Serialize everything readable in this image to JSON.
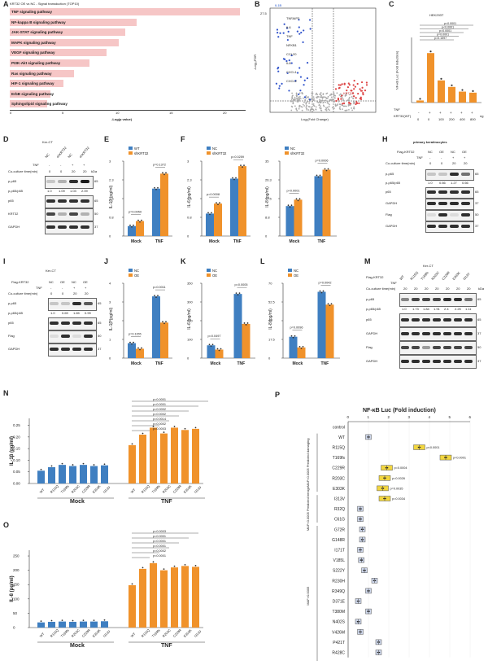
{
  "panel_letters": [
    "A",
    "B",
    "C",
    "D",
    "E",
    "F",
    "G",
    "H",
    "I",
    "J",
    "K",
    "L",
    "M",
    "N",
    "O",
    "P"
  ],
  "panelA": {
    "title": "KRT32 OE vs NC - Signal transduction (TOP10)",
    "xlabel": "-Log(p value)",
    "ticks": [
      "0",
      "5",
      "10",
      "15",
      "20"
    ],
    "pathways": [
      {
        "label": "TNF signaling pathway",
        "value": 21.5
      },
      {
        "label": "NF-kappa B signaling pathway",
        "value": 11.8
      },
      {
        "label": "JAK-STAT signaling pathway",
        "value": 10.8
      },
      {
        "label": "MAPK signaling pathway",
        "value": 10.2
      },
      {
        "label": "VEGF signaling pathway",
        "value": 9.0
      },
      {
        "label": "PI3K-Akt signaling pathway",
        "value": 7.4
      },
      {
        "label": "Ras signaling pathway",
        "value": 6.0
      },
      {
        "label": "HIF-1 signaling pathway",
        "value": 5.0
      },
      {
        "label": "ErbB signaling pathway",
        "value": 3.8
      },
      {
        "label": "Sphingolipid signaling pathway",
        "value": 3.5
      }
    ]
  },
  "panelB": {
    "xlabel": "Log₂(Fold Change)",
    "ylabel": "-Log₁₀FDR",
    "top_label": "IL1B",
    "y_top": "27.5",
    "genes_left": [
      "TNFAIP3",
      "IL6",
      "TNF",
      "NFKB1",
      "CCL20",
      "IL8",
      "CXCL1",
      "CXCL2"
    ],
    "genes_right": [
      "KRT32"
    ]
  },
  "panelC": {
    "title": "HEK293T",
    "ylabel": "NF-κB Luc (Fold induction)",
    "tnf_label": "TNF",
    "krt_label": "KRT32(WT)",
    "tnf_signs": [
      "-",
      "+",
      "+",
      "+",
      "+",
      "+"
    ],
    "doses": [
      "0",
      "0",
      "100",
      "200",
      "400",
      "800"
    ],
    "unit": "ng",
    "pvals": [
      "p<0.0001",
      "p<0.0001",
      "p=0.0001",
      "p=0.0001",
      "p=0.1597"
    ],
    "values": [
      8,
      190,
      85,
      60,
      42,
      38
    ],
    "ylim": [
      0,
      250
    ]
  },
  "panelD": {
    "title": "Ker-CT",
    "lanes": [
      "NC",
      "shKRT32",
      "NC",
      "shKRT32"
    ],
    "tnf": [
      "-",
      "-",
      "+",
      "+"
    ],
    "coculture_label": "Co-culture time(min)",
    "times": [
      "0",
      "0",
      "20",
      "20"
    ],
    "rows": [
      "p-p65",
      "p-p65/p65",
      "p65",
      "KRT32",
      "GAPDH"
    ],
    "ratio": [
      "1.0",
      "1.09",
      "1.03",
      "2.09"
    ],
    "kda": [
      "65",
      "",
      "65",
      "50",
      "37"
    ],
    "kda_header": "kDa"
  },
  "panelE": {
    "legend": [
      "WT",
      "shKRT32"
    ],
    "ylabel": "IL-1β (pg/ml)",
    "groups": [
      "Mock",
      "TNF"
    ],
    "values": [
      [
        0.4,
        0.6
      ],
      [
        1.9,
        2.5
      ]
    ],
    "pvals": [
      "p=0.0059",
      "p=0.1372"
    ],
    "ylim": [
      0,
      3
    ]
  },
  "panelF": {
    "legend": [
      "NC",
      "shKRT32"
    ],
    "ylabel": "IL-6 (pg/ml)",
    "groups": [
      "Mock",
      "TNF"
    ],
    "values": [
      [
        0.9,
        1.3
      ],
      [
        2.3,
        2.8
      ]
    ],
    "pvals": [
      "p=0.0008",
      "p=0.0259"
    ],
    "ylim": [
      0,
      3
    ]
  },
  "panelG": {
    "legend": [
      "NC",
      "shKRT32"
    ],
    "ylabel": "IL-8 (pg/ml)",
    "groups": [
      "Mock",
      "TNF"
    ],
    "values": [
      [
        14,
        17
      ],
      [
        28,
        31
      ]
    ],
    "pvals": [
      "p<0.0001",
      "p=0.0006"
    ],
    "ylim": [
      0,
      35
    ]
  },
  "panelH": {
    "title": "primary keratinocytes",
    "lanes": [
      "NC",
      "OE",
      "NC",
      "OE"
    ],
    "flag_label": "Flag-KRT32",
    "tnf_label": "TNF",
    "tnf": [
      "-",
      "-",
      "+",
      "+"
    ],
    "coculture_label": "Co-culture time(min)",
    "times": [
      "0",
      "0",
      "20",
      "20"
    ],
    "rows": [
      "p-p65",
      "p-p65/p65",
      "p65",
      "GAPDH",
      "Flag",
      "GAPDH"
    ],
    "ratio": [
      "1.0",
      "0.66",
      "1.27",
      "0.66"
    ],
    "kda": [
      "65",
      "",
      "65",
      "37",
      "50",
      "37"
    ]
  },
  "panelI": {
    "title": "Ker-CT",
    "flag_label": "Flag-KRT32",
    "lanes": [
      "NC",
      "OE",
      "NC",
      "OE"
    ],
    "tnf_label": "TNF",
    "tnf": [
      "-",
      "-",
      "+",
      "+"
    ],
    "coculture_label": "Co-culture time(min)",
    "times": [
      "0",
      "0",
      "20",
      "20"
    ],
    "rows": [
      "p-p65",
      "p-p65/p65",
      "p65",
      "Flag",
      "GAPDH"
    ],
    "ratio": [
      "1.0",
      "0.69",
      "1.65",
      "0.99"
    ],
    "kda": [
      "65",
      "",
      "65",
      "50",
      "37"
    ]
  },
  "panelJ": {
    "legend": [
      "NC",
      "OE"
    ],
    "ylabel": "IL-1β (pg/ml)",
    "groups": [
      "Mock",
      "TNF"
    ],
    "values": [
      [
        0.8,
        0.5
      ],
      [
        3.3,
        1.9
      ]
    ],
    "pvals": [
      "p=0.1155",
      "p=0.0011"
    ],
    "ylim": [
      0,
      4
    ]
  },
  "panelK": {
    "legend": [
      "NC",
      "OE"
    ],
    "ylabel": "IL-6 (pg/ml)",
    "groups": [
      "Mock",
      "TNF"
    ],
    "values": [
      [
        60,
        40
      ],
      [
        300,
        160
      ]
    ],
    "pvals": [
      "p=0.0497",
      "p=0.0005"
    ],
    "ticks": [
      "0",
      "50",
      "100",
      "150",
      "200",
      "250",
      "300",
      "350"
    ],
    "ylim": [
      0,
      350
    ]
  },
  "panelL": {
    "legend": [
      "NC",
      "OE"
    ],
    "ylabel": "IL-8 (pg/ml)",
    "groups": [
      "Mock",
      "TNF"
    ],
    "values": [
      [
        20,
        10
      ],
      [
        62,
        50
      ]
    ],
    "pvals": [
      "p=0.0096",
      "p=0.0042"
    ],
    "ylim": [
      0,
      70
    ]
  },
  "panelM": {
    "title": "Ker-CT",
    "flag_label": "Flag-KRT32",
    "lanes": [
      "WT",
      "R115Q",
      "T169fs",
      "R203C",
      "C229R",
      "E303K",
      "I313V"
    ],
    "tnf_label": "TNF",
    "coculture_label": "Co-culture time(min)",
    "times": [
      "20",
      "20",
      "20",
      "20",
      "20",
      "20",
      "20"
    ],
    "rows": [
      "p-p65",
      "p-p65/p65",
      "p65",
      "GAPDH",
      "Flag",
      "GAPDH"
    ],
    "ratio": [
      "1.0",
      "1.73",
      "1.84",
      "1.91",
      "2.4",
      "2.25",
      "1.11"
    ],
    "kda": [
      "65",
      "",
      "65",
      "37",
      "50",
      "37"
    ],
    "kda_header": "kDa"
  },
  "panelN": {
    "ylabel": "IL-1β (pg/ml)",
    "ticks": [
      "0.00",
      "0.05",
      "0.10",
      "0.15",
      "0.20",
      "0.25"
    ],
    "categories": [
      "WT",
      "R115Q",
      "T169fs",
      "R203C",
      "C229R",
      "E303K",
      "I313V"
    ],
    "groups": [
      "Mock",
      "TNF"
    ],
    "mock_values": [
      0.055,
      0.07,
      0.08,
      0.075,
      0.08,
      0.075,
      0.078
    ],
    "tnf_values": [
      0.165,
      0.21,
      0.24,
      0.215,
      0.24,
      0.23,
      0.235
    ],
    "pvals": [
      "p=0.0001",
      "p=0.0001",
      "p=0.0002",
      "p=0.0002",
      "p=0.0014",
      "p=0.0002",
      "p=0.0003"
    ],
    "ylim": [
      0,
      0.28
    ]
  },
  "panelO": {
    "ylabel": "IL-8 (pg/ml)",
    "ticks": [
      "0",
      "50",
      "100",
      "150",
      "200",
      "250"
    ],
    "categories": [
      "WT",
      "R115Q",
      "T169fs",
      "R203C",
      "C229R",
      "E303K",
      "I313V"
    ],
    "groups": [
      "Mock",
      "TNF"
    ],
    "mock_values": [
      18,
      20,
      21,
      20,
      21,
      21,
      22
    ],
    "tnf_values": [
      148,
      205,
      225,
      200,
      210,
      215,
      212
    ],
    "pvals": [
      "p=0.0003",
      "p=0.0001",
      "p=0.0001",
      "p=0.0001",
      "p=0.0002",
      "p<0.0001"
    ],
    "ylim": [
      0,
      270
    ]
  },
  "panelP": {
    "title": "NF-κB Luc (Fold induction)",
    "ticks": [
      "0",
      "1",
      "2",
      "3",
      "4",
      "5",
      "6"
    ],
    "groups": [
      {
        "label": "MAF<0.0005 Predicted damaging",
        "from": 1,
        "to": 6
      },
      {
        "label": "MAF<0.0005 Predicted benign",
        "from": 7,
        "to": 9
      },
      {
        "label": "MAF>0.0005",
        "from": 10,
        "to": 23
      }
    ],
    "variants": [
      {
        "name": "control",
        "value": 0.0,
        "color": "#ffffff"
      },
      {
        "name": "WT",
        "value": 1.0,
        "color": "#cfd8ec"
      },
      {
        "name": "R115Q",
        "value": 3.5,
        "color": "#f2d640",
        "p": "p<0.0001"
      },
      {
        "name": "T169fs",
        "value": 4.8,
        "color": "#f2d640",
        "p": "p<0.0001"
      },
      {
        "name": "C229R",
        "value": 1.9,
        "color": "#f2d640",
        "p": "p=0.0004"
      },
      {
        "name": "R203C",
        "value": 1.8,
        "color": "#f2d640",
        "p": "p=0.0026"
      },
      {
        "name": "E303K",
        "value": 1.7,
        "color": "#f2d640",
        "p": "p=0.0035"
      },
      {
        "name": "I313V",
        "value": 1.8,
        "color": "#f2d640",
        "p": "p=0.0034"
      },
      {
        "name": "R32Q",
        "value": 0.6,
        "color": "#cfd8ec"
      },
      {
        "name": "C61G",
        "value": 0.6,
        "color": "#cfd8ec"
      },
      {
        "name": "G72R",
        "value": 0.7,
        "color": "#cfd8ec"
      },
      {
        "name": "G148R",
        "value": 0.7,
        "color": "#cfd8ec"
      },
      {
        "name": "I171T",
        "value": 0.6,
        "color": "#cfd8ec"
      },
      {
        "name": "V185L",
        "value": 0.65,
        "color": "#cfd8ec"
      },
      {
        "name": "S222Y",
        "value": 0.8,
        "color": "#cfd8ec"
      },
      {
        "name": "R230H",
        "value": 1.3,
        "color": "#cfd8ec"
      },
      {
        "name": "R349Q",
        "value": 1.0,
        "color": "#cfd8ec"
      },
      {
        "name": "D371E",
        "value": 0.5,
        "color": "#cfd8ec"
      },
      {
        "name": "T380M",
        "value": 1.0,
        "color": "#cfd8ec"
      },
      {
        "name": "N402S",
        "value": 0.5,
        "color": "#cfd8ec"
      },
      {
        "name": "V426M",
        "value": 0.6,
        "color": "#cfd8ec"
      },
      {
        "name": "P421T",
        "value": 1.5,
        "color": "#cfd8ec"
      },
      {
        "name": "R428C",
        "value": 1.5,
        "color": "#cfd8ec"
      }
    ]
  },
  "colors": {
    "blue": "#3f7fc1",
    "orange": "#f0922b",
    "pink": "#f6c6c6",
    "yellow": "#f2d640",
    "lightblue": "#cfd8ec"
  }
}
